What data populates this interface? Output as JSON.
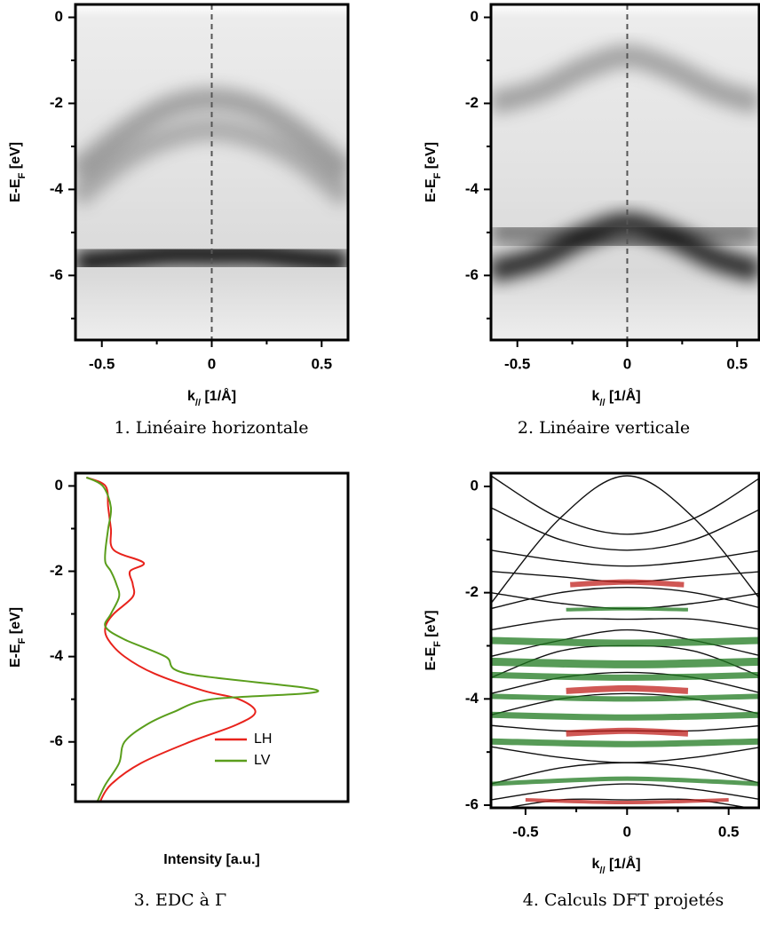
{
  "chart_data": [
    {
      "type": "image",
      "caption": "1. Linéaire horizontale",
      "xlabel": [
        "k",
        "//",
        " [1/Å]"
      ],
      "ylabel": [
        "E-E",
        "F",
        " [eV]"
      ],
      "xlim": [
        -0.62,
        0.62
      ],
      "ylim": [
        -7.5,
        0.3
      ],
      "xticks": [
        -0.5,
        0,
        0.5
      ],
      "xminor": [
        -0.25,
        0.25
      ],
      "yticks": [
        0,
        -2,
        -4,
        -6
      ],
      "yminor": [
        -1,
        -3,
        -5,
        -7
      ],
      "vline": 0,
      "bands": [
        {
          "x": [
            -0.62,
            -0.4,
            -0.2,
            0,
            0.2,
            0.4,
            0.62
          ],
          "y": [
            -5.7,
            -5.6,
            -5.5,
            -5.5,
            -5.5,
            -5.6,
            -5.7
          ],
          "weight": 0.9
        },
        {
          "x": [
            -0.62,
            -0.4,
            -0.2,
            0,
            0.2,
            0.4,
            0.62
          ],
          "y": [
            -5.9,
            -5.9,
            -5.9,
            -5.9,
            -5.9,
            -5.9,
            -5.9
          ],
          "weight": 0.5
        },
        {
          "x": [
            -0.62,
            -0.4,
            -0.2,
            0,
            0.2,
            0.4,
            0.62
          ],
          "y": [
            -3.6,
            -2.7,
            -2.1,
            -1.9,
            -2.1,
            -2.7,
            -3.6
          ],
          "weight": 0.3
        },
        {
          "x": [
            -0.62,
            -0.4,
            -0.2,
            0,
            0.2,
            0.4,
            0.62
          ],
          "y": [
            -4.2,
            -3.3,
            -2.8,
            -2.6,
            -2.8,
            -3.3,
            -4.2
          ],
          "weight": 0.25
        }
      ]
    },
    {
      "type": "image",
      "caption": "2. Linéaire verticale",
      "xlabel": [
        "k",
        "//",
        " [1/Å]"
      ],
      "ylabel": [
        "E-E",
        "F",
        " [eV]"
      ],
      "xlim": [
        -0.62,
        0.6
      ],
      "ylim": [
        -7.5,
        0.3
      ],
      "xticks": [
        -0.5,
        0,
        0.5
      ],
      "xminor": [
        -0.25,
        0.25
      ],
      "yticks": [
        0,
        -2,
        -4,
        -6
      ],
      "yminor": [
        -1,
        -3,
        -5,
        -7
      ],
      "vline": 0,
      "bands": [
        {
          "x": [
            -0.62,
            -0.4,
            -0.2,
            0,
            0.2,
            0.4,
            0.6
          ],
          "y": [
            -5.9,
            -5.6,
            -5.1,
            -4.8,
            -5.1,
            -5.6,
            -5.9
          ],
          "weight": 0.8
        },
        {
          "x": [
            -0.62,
            -0.4,
            -0.2,
            0,
            0.2,
            0.4,
            0.6
          ],
          "y": [
            -5.0,
            -5.0,
            -5.1,
            -5.2,
            -5.1,
            -5.0,
            -5.0
          ],
          "weight": 0.45
        },
        {
          "x": [
            -0.62,
            -0.4,
            -0.2,
            0,
            0.2,
            0.4,
            0.6
          ],
          "y": [
            -2.0,
            -1.7,
            -1.2,
            -0.9,
            -1.2,
            -1.7,
            -2.0
          ],
          "weight": 0.3
        }
      ]
    },
    {
      "type": "line",
      "caption": "3. EDC à Γ",
      "xlabel": "Intensity [a.u.]",
      "ylabel": [
        "E-E",
        "F",
        " [eV]"
      ],
      "xlim": [
        0,
        1
      ],
      "ylim": [
        -7.4,
        0.3
      ],
      "yticks": [
        0,
        -2,
        -4,
        -6
      ],
      "yminor": [
        -1,
        -3,
        -5,
        -7
      ],
      "legend": "lower right",
      "energy": [
        0.2,
        0,
        -0.5,
        -1,
        -1.5,
        -1.8,
        -2,
        -2.3,
        -2.6,
        -3,
        -3.3,
        -3.6,
        -4,
        -4.4,
        -4.8,
        -5,
        -5.3,
        -5.6,
        -6,
        -6.5,
        -7,
        -7.4
      ],
      "series": [
        {
          "name": "LH",
          "color": "#e8231c",
          "values": [
            0.04,
            0.11,
            0.12,
            0.13,
            0.14,
            0.25,
            0.2,
            0.21,
            0.21,
            0.14,
            0.11,
            0.12,
            0.18,
            0.29,
            0.47,
            0.6,
            0.66,
            0.59,
            0.42,
            0.24,
            0.13,
            0.09
          ]
        },
        {
          "name": "LV",
          "color": "#5a9e1c",
          "values": [
            0.04,
            0.1,
            0.13,
            0.12,
            0.11,
            0.11,
            0.13,
            0.15,
            0.16,
            0.13,
            0.11,
            0.18,
            0.33,
            0.41,
            0.89,
            0.5,
            0.36,
            0.26,
            0.18,
            0.16,
            0.11,
            0.08
          ]
        }
      ]
    },
    {
      "type": "bands",
      "caption": "4. Calculs DFT projetés",
      "xlabel": [
        "k",
        "//",
        " [1/Å]"
      ],
      "ylabel": [
        "E-E",
        "F",
        " [eV]"
      ],
      "xlim": [
        -0.67,
        0.65
      ],
      "ylim": [
        -6.05,
        0.25
      ],
      "xticks": [
        -0.5,
        0,
        0.5
      ],
      "xminor": [
        -0.25,
        0.25
      ],
      "yticks": [
        0,
        -2,
        -4,
        -6
      ],
      "yminor": [
        -1,
        -3,
        -5
      ],
      "bands": [
        {
          "color": "#111111",
          "x": [
            -0.67,
            -0.33,
            0,
            0.33,
            0.67
          ],
          "y": [
            0.2,
            -0.6,
            -0.9,
            -0.6,
            0.2
          ]
        },
        {
          "color": "#111111",
          "x": [
            -0.67,
            -0.33,
            0,
            0.33,
            0.67
          ],
          "y": [
            -2.2,
            -0.6,
            0.2,
            -0.6,
            -2.2
          ]
        },
        {
          "color": "#111111",
          "x": [
            -0.67,
            -0.33,
            0,
            0.33,
            0.67
          ],
          "y": [
            -0.4,
            -1.0,
            -1.2,
            -1.0,
            -0.4
          ]
        },
        {
          "color": "#111111",
          "x": [
            -0.67,
            -0.33,
            0,
            0.33,
            0.67
          ],
          "y": [
            -1.2,
            -1.4,
            -1.5,
            -1.4,
            -1.2
          ]
        },
        {
          "color": "#111111",
          "x": [
            -0.67,
            -0.33,
            0,
            0.33,
            0.67
          ],
          "y": [
            -1.6,
            -1.7,
            -1.8,
            -1.7,
            -1.6
          ]
        },
        {
          "color": "#111111",
          "x": [
            -0.67,
            -0.33,
            0,
            0.33,
            0.67
          ],
          "y": [
            -2.3,
            -2.0,
            -1.9,
            -2.0,
            -2.3
          ]
        },
        {
          "color": "#111111",
          "x": [
            -0.67,
            -0.33,
            0,
            0.33,
            0.67
          ],
          "y": [
            -2.0,
            -2.2,
            -2.3,
            -2.2,
            -2.0
          ]
        },
        {
          "color": "#111111",
          "x": [
            -0.67,
            -0.33,
            0,
            0.33,
            0.67
          ],
          "y": [
            -2.7,
            -2.5,
            -2.5,
            -2.5,
            -2.7
          ]
        },
        {
          "color": "#111111",
          "x": [
            -0.67,
            -0.33,
            0,
            0.33,
            0.67
          ],
          "y": [
            -3.2,
            -2.9,
            -2.7,
            -2.9,
            -3.2
          ]
        },
        {
          "color": "#111111",
          "x": [
            -0.67,
            -0.33,
            0,
            0.33,
            0.67
          ],
          "y": [
            -3.6,
            -3.1,
            -3.0,
            -3.1,
            -3.6
          ]
        },
        {
          "color": "#111111",
          "x": [
            -0.67,
            -0.33,
            0,
            0.33,
            0.67
          ],
          "y": [
            -3.9,
            -3.6,
            -3.5,
            -3.6,
            -3.9
          ]
        },
        {
          "color": "#111111",
          "x": [
            -0.67,
            -0.33,
            0,
            0.33,
            0.67
          ],
          "y": [
            -4.3,
            -4.0,
            -3.9,
            -4.0,
            -4.3
          ]
        },
        {
          "color": "#111111",
          "x": [
            -0.67,
            -0.33,
            0,
            0.33,
            0.67
          ],
          "y": [
            -4.5,
            -4.6,
            -4.6,
            -4.6,
            -4.5
          ]
        },
        {
          "color": "#111111",
          "x": [
            -0.67,
            -0.33,
            0,
            0.33,
            0.67
          ],
          "y": [
            -4.9,
            -5.1,
            -5.2,
            -5.1,
            -4.9
          ]
        },
        {
          "color": "#111111",
          "x": [
            -0.67,
            -0.33,
            0,
            0.33,
            0.67
          ],
          "y": [
            -5.6,
            -5.3,
            -5.2,
            -5.3,
            -5.6
          ]
        },
        {
          "color": "#111111",
          "x": [
            -0.67,
            -0.33,
            0,
            0.33,
            0.67
          ],
          "y": [
            -5.9,
            -5.7,
            -5.6,
            -5.7,
            -5.9
          ]
        },
        {
          "color": "#111111",
          "x": [
            -0.67,
            -0.33,
            0,
            0.33,
            0.67
          ],
          "y": [
            -6.1,
            -5.9,
            -5.9,
            -5.9,
            -6.1
          ]
        },
        {
          "color": "#c0201c",
          "x": [
            -0.28,
            0,
            0.28
          ],
          "y": [
            -1.85,
            -1.8,
            -1.85
          ],
          "weight": 6
        },
        {
          "color": "#1f7a1f",
          "x": [
            -0.3,
            0,
            0.3
          ],
          "y": [
            -2.32,
            -2.3,
            -2.32
          ],
          "weight": 4
        },
        {
          "color": "#1f7a1f",
          "x": [
            -0.67,
            0,
            0.65
          ],
          "y": [
            -2.9,
            -2.95,
            -2.9
          ],
          "weight": 8
        },
        {
          "color": "#1f7a1f",
          "x": [
            -0.67,
            0,
            0.65
          ],
          "y": [
            -3.3,
            -3.35,
            -3.3
          ],
          "weight": 9
        },
        {
          "color": "#1f7a1f",
          "x": [
            -0.67,
            0,
            0.65
          ],
          "y": [
            -3.55,
            -3.6,
            -3.55
          ],
          "weight": 7
        },
        {
          "color": "#c0201c",
          "x": [
            -0.3,
            0,
            0.3
          ],
          "y": [
            -3.85,
            -3.8,
            -3.85
          ],
          "weight": 7
        },
        {
          "color": "#1f7a1f",
          "x": [
            -0.67,
            0,
            0.65
          ],
          "y": [
            -3.95,
            -4.0,
            -3.95
          ],
          "weight": 6
        },
        {
          "color": "#1f7a1f",
          "x": [
            -0.67,
            0,
            0.65
          ],
          "y": [
            -4.3,
            -4.35,
            -4.3
          ],
          "weight": 7
        },
        {
          "color": "#c0201c",
          "x": [
            -0.3,
            0,
            0.3
          ],
          "y": [
            -4.65,
            -4.6,
            -4.65
          ],
          "weight": 7
        },
        {
          "color": "#1f7a1f",
          "x": [
            -0.67,
            0,
            0.65
          ],
          "y": [
            -4.8,
            -4.85,
            -4.8
          ],
          "weight": 7
        },
        {
          "color": "#1f7a1f",
          "x": [
            -0.67,
            -0.4,
            0,
            0.4,
            0.65
          ],
          "y": [
            -5.6,
            -5.55,
            -5.5,
            -5.55,
            -5.6
          ],
          "weight": 5
        },
        {
          "color": "#c0201c",
          "x": [
            -0.5,
            0,
            0.5
          ],
          "y": [
            -5.9,
            -5.95,
            -5.9
          ],
          "weight": 4
        }
      ]
    }
  ]
}
